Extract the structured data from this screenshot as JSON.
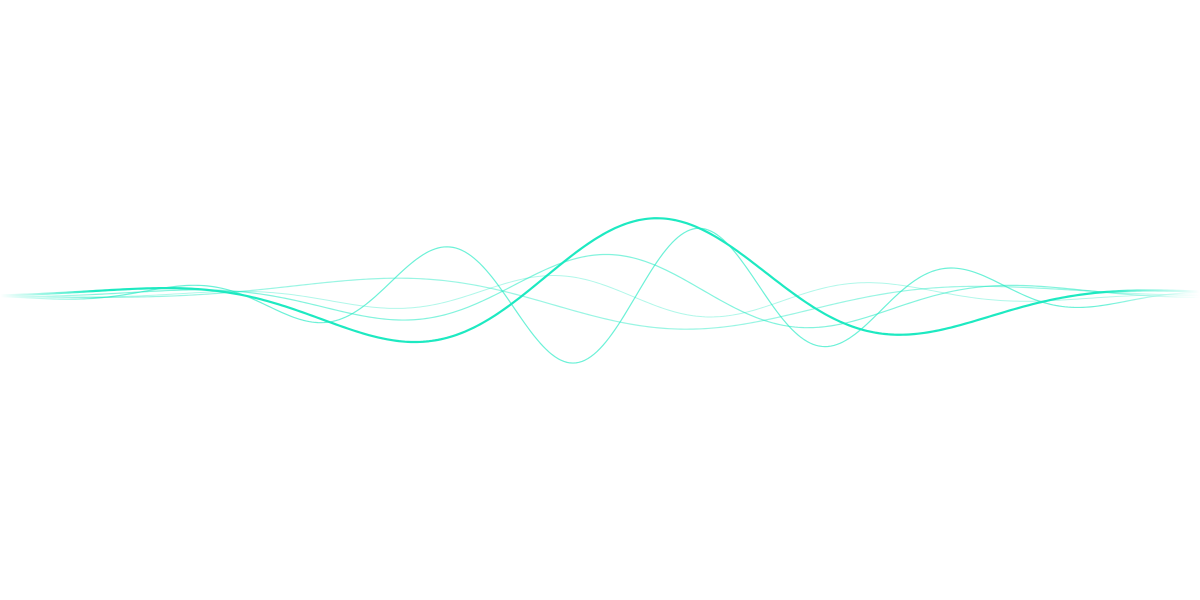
{
  "graphic": {
    "kind": "sound-wave",
    "background_color": "#ffffff",
    "accent_color": "#1de9c1",
    "wave_count": 5
  }
}
